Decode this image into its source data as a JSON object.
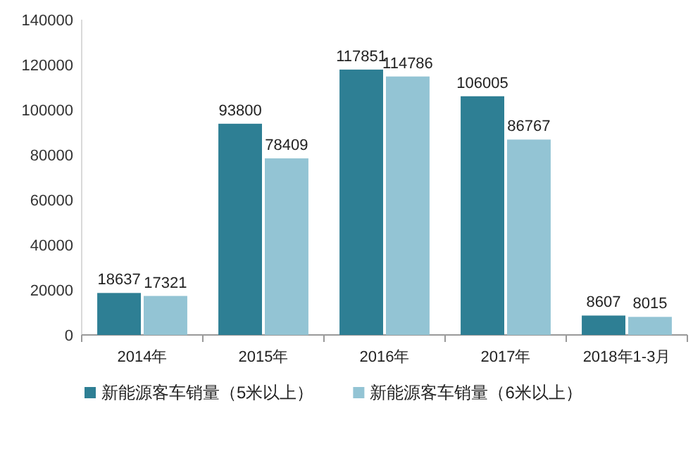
{
  "chart_data": {
    "type": "bar",
    "categories": [
      "2014年",
      "2015年",
      "2016年",
      "2017年",
      "2018年1-3月"
    ],
    "series": [
      {
        "name": "新能源客车销量（5米以上）",
        "color": "#2e7f94",
        "values": [
          18637,
          93800,
          117851,
          106005,
          8607
        ]
      },
      {
        "name": "新能源客车销量（6米以上）",
        "color": "#93c4d4",
        "values": [
          17321,
          78409,
          114786,
          86767,
          8015
        ]
      }
    ],
    "ylim": [
      0,
      140000
    ],
    "yticks": [
      0,
      20000,
      40000,
      60000,
      80000,
      100000,
      120000,
      140000
    ],
    "data_labels": true,
    "legend": "bottom",
    "grid": false
  }
}
